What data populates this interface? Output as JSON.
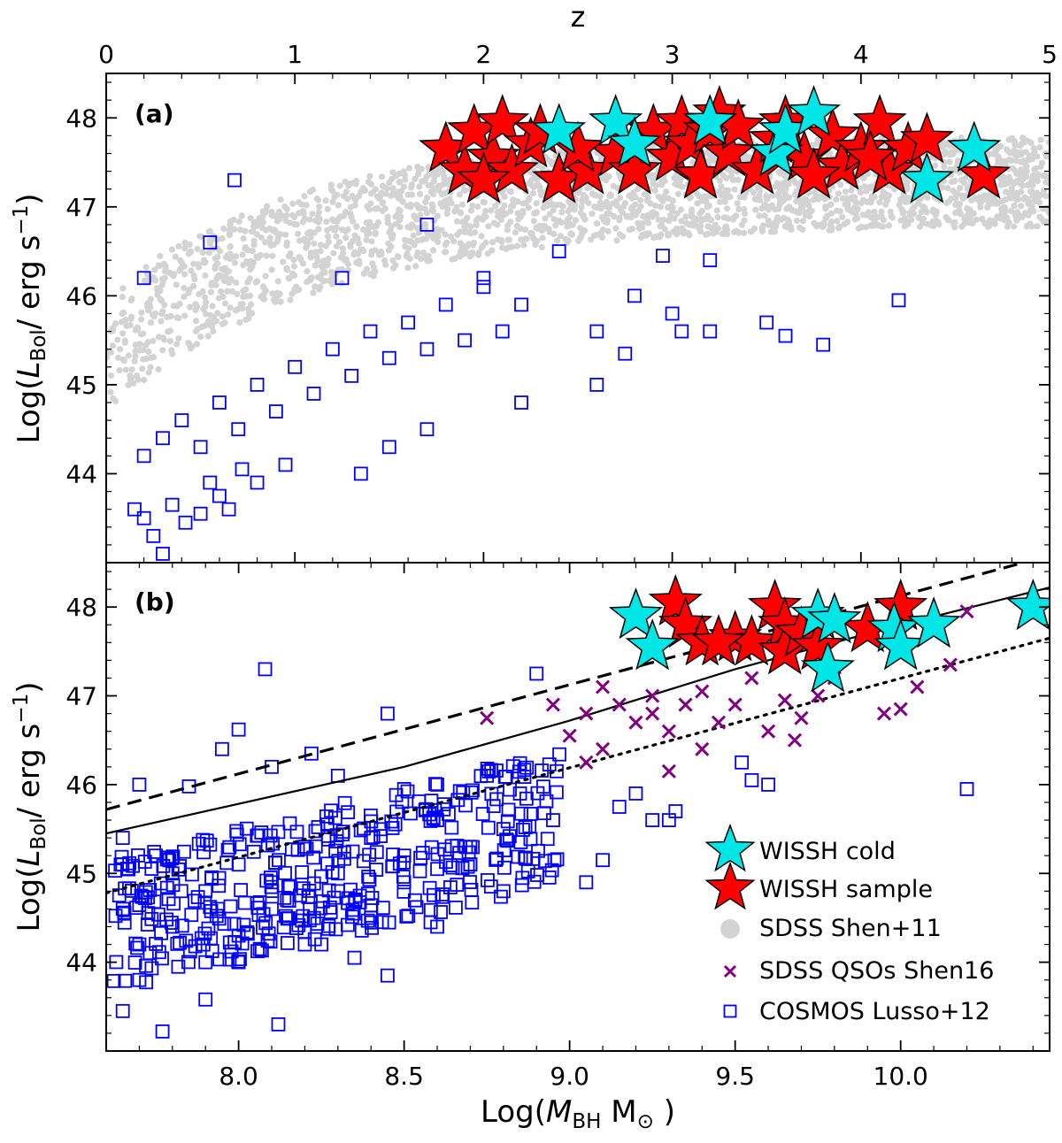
{
  "chart_data": [
    {
      "type": "scatter",
      "panel_label": "(a)",
      "x_top": {
        "label": "z",
        "range": [
          0,
          5
        ],
        "ticks": [
          "0",
          "1",
          "2",
          "3",
          "4",
          "5"
        ]
      },
      "y": {
        "label_prefix": "Log(",
        "label_var": "L",
        "label_sub": "Bol",
        "label_suffix": "/ erg s",
        "label_exp": "−1",
        "label_close": ")",
        "range": [
          43.0,
          48.5
        ],
        "ticks": [
          "44",
          "45",
          "46",
          "47",
          "48"
        ]
      },
      "series": [
        {
          "name": "SDSS Shen+11",
          "marker": "dot",
          "color": "#d3d3d3",
          "region": "gray band from z≈0 to z≈5, Log L from ≈44.7 rising to ≈47.8"
        },
        {
          "name": "COSMOS Lusso+12",
          "marker": "open-square",
          "color": "#0000ff",
          "points": [
            [
              0.15,
              43.6
            ],
            [
              0.2,
              43.5
            ],
            [
              0.25,
              43.3
            ],
            [
              0.3,
              43.1
            ],
            [
              0.35,
              43.65
            ],
            [
              0.42,
              43.45
            ],
            [
              0.5,
              43.55
            ],
            [
              0.55,
              43.9
            ],
            [
              0.6,
              43.75
            ],
            [
              0.65,
              43.6
            ],
            [
              0.72,
              44.05
            ],
            [
              0.8,
              43.9
            ],
            [
              0.2,
              44.2
            ],
            [
              0.3,
              44.4
            ],
            [
              0.4,
              44.6
            ],
            [
              0.5,
              44.3
            ],
            [
              0.6,
              44.8
            ],
            [
              0.7,
              44.5
            ],
            [
              0.8,
              45.0
            ],
            [
              0.9,
              44.7
            ],
            [
              1.0,
              45.2
            ],
            [
              1.1,
              44.9
            ],
            [
              1.2,
              45.4
            ],
            [
              1.3,
              45.1
            ],
            [
              1.4,
              45.6
            ],
            [
              1.5,
              45.3
            ],
            [
              1.6,
              45.7
            ],
            [
              1.7,
              45.4
            ],
            [
              1.8,
              45.9
            ],
            [
              1.9,
              45.5
            ],
            [
              2.0,
              46.1
            ],
            [
              2.1,
              45.6
            ],
            [
              2.2,
              45.9
            ],
            [
              2.4,
              46.5
            ],
            [
              2.6,
              45.6
            ],
            [
              2.8,
              46.0
            ],
            [
              3.0,
              45.8
            ],
            [
              3.2,
              45.6
            ],
            [
              3.5,
              45.7
            ],
            [
              3.6,
              45.55
            ],
            [
              3.8,
              45.45
            ],
            [
              4.2,
              45.95
            ],
            [
              0.68,
              47.3
            ],
            [
              0.55,
              46.6
            ],
            [
              0.2,
              46.2
            ],
            [
              1.25,
              46.2
            ],
            [
              0.95,
              44.1
            ],
            [
              1.35,
              44.0
            ],
            [
              1.5,
              44.3
            ],
            [
              1.7,
              44.5
            ],
            [
              2.2,
              44.8
            ],
            [
              2.6,
              45.0
            ],
            [
              2.75,
              45.35
            ],
            [
              3.05,
              45.6
            ],
            [
              2.95,
              46.45
            ],
            [
              3.2,
              46.4
            ],
            [
              1.7,
              46.8
            ],
            [
              2.0,
              46.2
            ]
          ]
        },
        {
          "name": "WISSH sample",
          "marker": "star",
          "color": "#ff0000",
          "points": [
            [
              1.8,
              47.65
            ],
            [
              1.9,
              47.4
            ],
            [
              1.95,
              47.85
            ],
            [
              2.05,
              47.55
            ],
            [
              2.1,
              47.95
            ],
            [
              2.15,
              47.4
            ],
            [
              2.25,
              47.7
            ],
            [
              2.3,
              47.85
            ],
            [
              2.4,
              47.3
            ],
            [
              2.55,
              47.4
            ],
            [
              2.7,
              47.6
            ],
            [
              2.8,
              47.4
            ],
            [
              2.9,
              47.85
            ],
            [
              3.0,
              47.55
            ],
            [
              3.05,
              47.95
            ],
            [
              3.1,
              47.7
            ],
            [
              3.15,
              47.35
            ],
            [
              3.2,
              47.85
            ],
            [
              3.25,
              48.05
            ],
            [
              3.3,
              47.6
            ],
            [
              3.35,
              47.9
            ],
            [
              3.45,
              47.4
            ],
            [
              3.55,
              47.75
            ],
            [
              3.6,
              47.95
            ],
            [
              3.7,
              47.55
            ],
            [
              3.85,
              47.8
            ],
            [
              3.9,
              47.45
            ],
            [
              4.0,
              47.65
            ],
            [
              4.1,
              47.95
            ],
            [
              4.15,
              47.4
            ],
            [
              4.25,
              47.65
            ],
            [
              4.35,
              47.75
            ],
            [
              4.65,
              47.35
            ],
            [
              2.0,
              47.3
            ],
            [
              2.5,
              47.65
            ],
            [
              3.75,
              47.35
            ],
            [
              4.05,
              47.55
            ]
          ]
        },
        {
          "name": "WISSH cold",
          "marker": "star",
          "color": "#00e5e5",
          "points": [
            [
              2.4,
              47.85
            ],
            [
              2.7,
              47.95
            ],
            [
              2.8,
              47.7
            ],
            [
              3.2,
              47.95
            ],
            [
              3.55,
              47.6
            ],
            [
              3.6,
              47.85
            ],
            [
              3.75,
              48.05
            ],
            [
              4.35,
              47.3
            ],
            [
              4.6,
              47.65
            ]
          ]
        }
      ]
    },
    {
      "type": "scatter",
      "panel_label": "(b)",
      "x": {
        "label_prefix": "Log(",
        "label_var": "M",
        "label_sub": "BH",
        "label_unit": " M",
        "label_unit_sub": "⊙",
        "label_close": " )",
        "range": [
          7.6,
          10.45
        ],
        "ticks": [
          "8.0",
          "8.5",
          "9.0",
          "9.5",
          "10.0"
        ]
      },
      "y": {
        "range": [
          43.0,
          48.5
        ],
        "ticks": [
          "44",
          "45",
          "46",
          "47",
          "48"
        ]
      },
      "lines": [
        {
          "style": "dashed",
          "points": [
            [
              7.6,
              45.72
            ],
            [
              10.45,
              48.58
            ]
          ]
        },
        {
          "style": "solid",
          "points": [
            [
              7.6,
              45.45
            ],
            [
              8.5,
              46.2
            ],
            [
              9.0,
              46.72
            ],
            [
              9.5,
              47.3
            ],
            [
              10.0,
              47.8
            ],
            [
              10.45,
              48.22
            ]
          ]
        },
        {
          "style": "dotted",
          "points": [
            [
              7.6,
              44.78
            ],
            [
              10.45,
              47.65
            ]
          ]
        }
      ],
      "series": [
        {
          "name": "COSMOS Lusso+12",
          "marker": "open-square",
          "color": "#0000ff",
          "points": [
            [
              8.08,
              47.3
            ],
            [
              8.45,
              46.8
            ],
            [
              8.9,
              47.25
            ],
            [
              8.0,
              46.62
            ],
            [
              7.95,
              46.4
            ],
            [
              8.22,
              46.35
            ],
            [
              7.7,
              46.0
            ],
            [
              7.85,
              45.98
            ],
            [
              8.1,
              46.2
            ],
            [
              8.3,
              46.1
            ],
            [
              8.5,
              45.95
            ],
            [
              8.6,
              46.0
            ],
            [
              8.75,
              46.1
            ],
            [
              8.85,
              45.9
            ],
            [
              8.95,
              45.6
            ],
            [
              9.2,
              45.9
            ],
            [
              9.25,
              45.6
            ],
            [
              9.32,
              45.7
            ],
            [
              9.15,
              45.75
            ],
            [
              9.52,
              46.25
            ],
            [
              9.55,
              46.05
            ],
            [
              9.6,
              46.0
            ],
            [
              9.3,
              45.6
            ],
            [
              10.2,
              45.95
            ],
            [
              7.65,
              45.4
            ],
            [
              7.75,
              45.2
            ],
            [
              7.8,
              45.0
            ],
            [
              7.9,
              44.8
            ],
            [
              8.0,
              45.1
            ],
            [
              8.1,
              44.9
            ],
            [
              8.2,
              45.3
            ],
            [
              8.3,
              45.0
            ],
            [
              8.4,
              45.4
            ],
            [
              8.5,
              45.2
            ],
            [
              8.6,
              45.6
            ],
            [
              8.7,
              45.3
            ],
            [
              8.8,
              45.5
            ],
            [
              7.65,
              44.6
            ],
            [
              7.7,
              44.2
            ],
            [
              7.8,
              44.4
            ],
            [
              7.9,
              44.0
            ],
            [
              8.0,
              44.3
            ],
            [
              8.1,
              44.6
            ],
            [
              8.2,
              44.2
            ],
            [
              8.3,
              44.8
            ],
            [
              8.4,
              44.5
            ],
            [
              8.5,
              44.9
            ],
            [
              8.6,
              44.4
            ],
            [
              8.7,
              45.1
            ],
            [
              8.8,
              44.8
            ],
            [
              7.7,
              43.8
            ],
            [
              7.65,
              43.45
            ],
            [
              7.77,
              43.22
            ],
            [
              7.9,
              43.58
            ],
            [
              8.12,
              43.3
            ],
            [
              8.45,
              43.85
            ],
            [
              8.58,
              44.45
            ],
            [
              9.05,
              44.9
            ],
            [
              9.1,
              45.15
            ],
            [
              8.6,
              45.05
            ],
            [
              8.35,
              44.05
            ],
            [
              8.25,
              44.2
            ],
            [
              8.0,
              44.0
            ]
          ]
        },
        {
          "name": "SDSS QSOs Shen16",
          "marker": "x",
          "color": "#800080",
          "points": [
            [
              8.75,
              46.75
            ],
            [
              8.95,
              46.9
            ],
            [
              9.0,
              46.55
            ],
            [
              9.05,
              46.8
            ],
            [
              9.1,
              47.1
            ],
            [
              9.15,
              46.9
            ],
            [
              9.2,
              46.7
            ],
            [
              9.25,
              47.0
            ],
            [
              9.3,
              46.6
            ],
            [
              9.35,
              46.9
            ],
            [
              9.4,
              46.4
            ],
            [
              9.45,
              46.7
            ],
            [
              9.5,
              46.9
            ],
            [
              9.55,
              47.2
            ],
            [
              9.6,
              46.6
            ],
            [
              9.65,
              46.95
            ],
            [
              9.68,
              46.5
            ],
            [
              9.75,
              47.0
            ],
            [
              9.8,
              47.2
            ],
            [
              9.95,
              46.8
            ],
            [
              10.0,
              46.85
            ],
            [
              10.05,
              47.1
            ],
            [
              10.15,
              47.35
            ],
            [
              9.3,
              46.15
            ],
            [
              9.05,
              46.25
            ],
            [
              9.1,
              46.4
            ],
            [
              9.25,
              46.8
            ],
            [
              9.4,
              47.05
            ],
            [
              9.7,
              46.75
            ],
            [
              10.2,
              47.95
            ]
          ]
        },
        {
          "name": "WISSH sample",
          "marker": "star",
          "color": "#ff0000",
          "points": [
            [
              9.32,
              48.05
            ],
            [
              9.35,
              47.8
            ],
            [
              9.4,
              47.6
            ],
            [
              9.5,
              47.65
            ],
            [
              9.55,
              47.6
            ],
            [
              9.62,
              48.0
            ],
            [
              9.65,
              47.8
            ],
            [
              9.65,
              47.5
            ],
            [
              9.7,
              47.7
            ],
            [
              9.75,
              47.55
            ],
            [
              9.9,
              47.75
            ],
            [
              10.0,
              48.0
            ],
            [
              9.45,
              47.6
            ]
          ]
        },
        {
          "name": "WISSH cold",
          "marker": "star",
          "color": "#00e5e5",
          "points": [
            [
              9.2,
              47.9
            ],
            [
              9.25,
              47.55
            ],
            [
              9.75,
              47.9
            ],
            [
              9.8,
              47.85
            ],
            [
              9.78,
              47.3
            ],
            [
              9.98,
              47.75
            ],
            [
              10.0,
              47.55
            ],
            [
              10.1,
              47.8
            ],
            [
              10.4,
              48.0
            ]
          ]
        }
      ],
      "legend": {
        "location": "lower-right",
        "entries": [
          {
            "label": "WISSH cold",
            "marker": "star",
            "color": "#00e5e5"
          },
          {
            "label": "WISSH sample",
            "marker": "star",
            "color": "#ff0000"
          },
          {
            "label": "SDSS Shen+11",
            "marker": "dot",
            "color": "#d3d3d3"
          },
          {
            "label": "SDSS QSOs Shen16",
            "marker": "x",
            "color": "#800080"
          },
          {
            "label": "COSMOS Lusso+12",
            "marker": "open-square",
            "color": "#0000ff"
          }
        ]
      }
    }
  ]
}
